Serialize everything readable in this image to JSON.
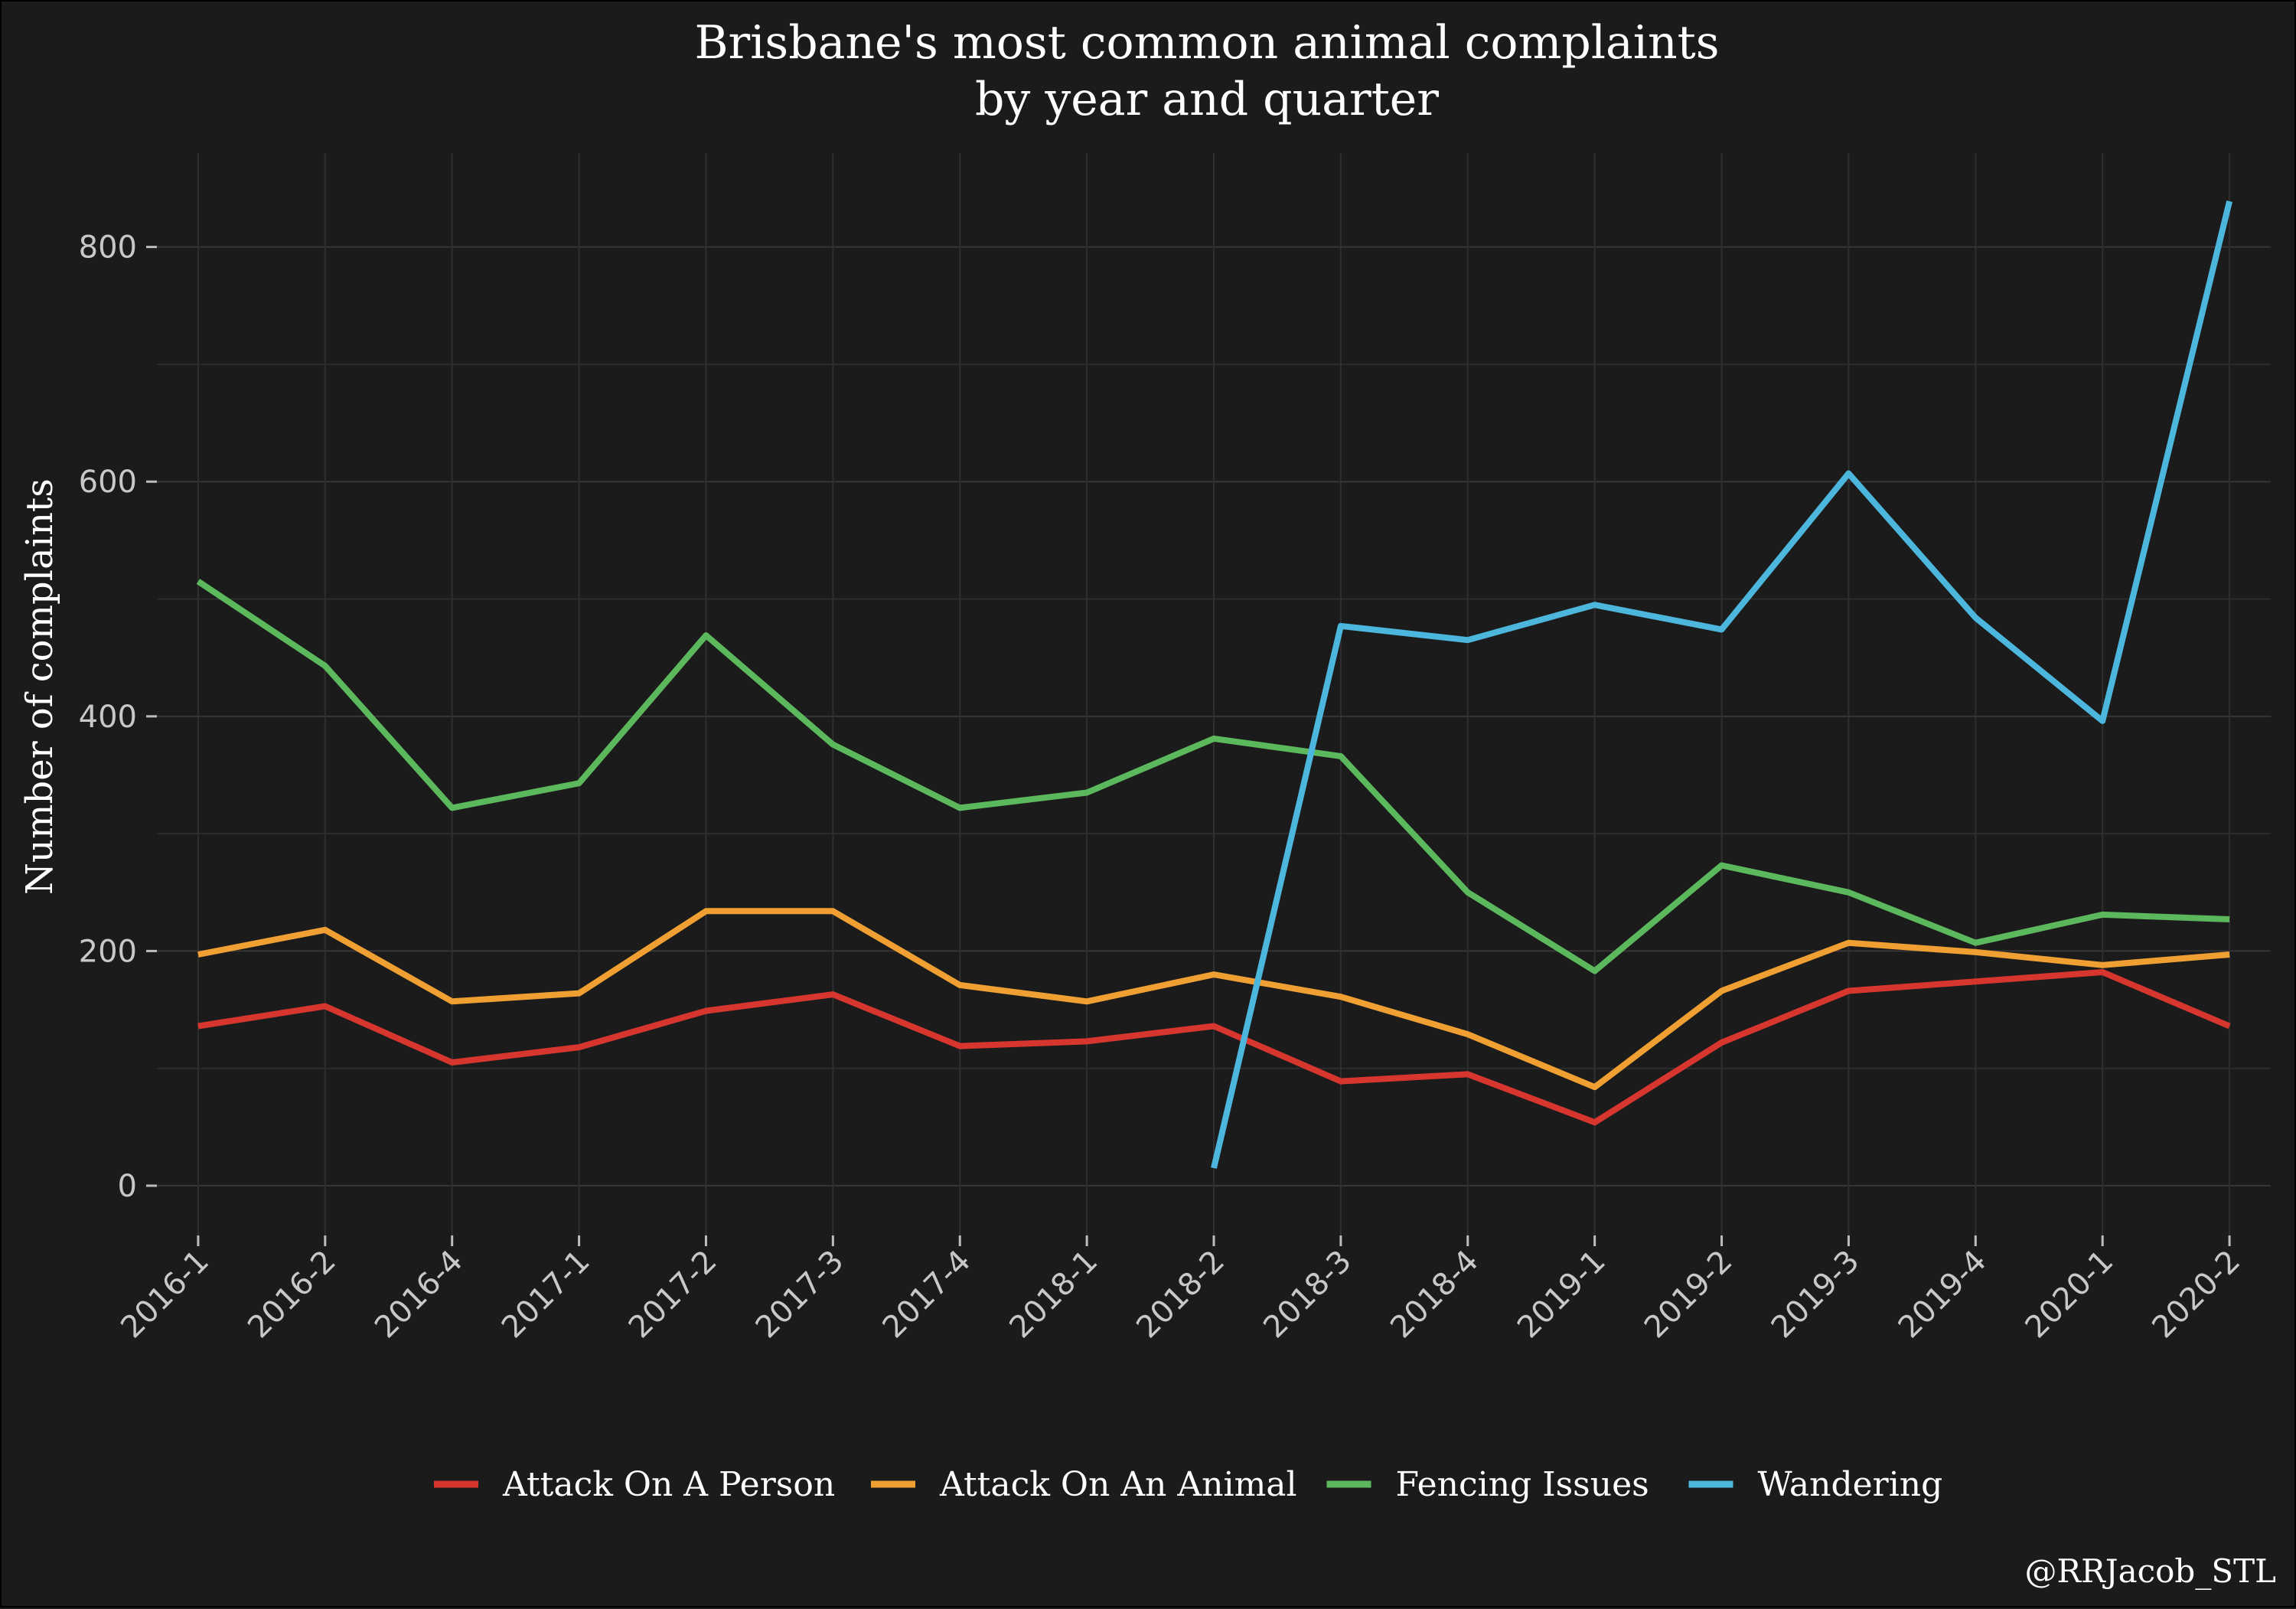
{
  "chart_data": {
    "type": "line",
    "title": "Brisbane's most common animal complaints",
    "subtitle": "by year and quarter",
    "xlabel": "",
    "ylabel": "Number of complaints",
    "ylim": [
      0,
      880
    ],
    "yticks": [
      0,
      200,
      400,
      600,
      800
    ],
    "grid": true,
    "legend_position": "bottom",
    "categories": [
      "2016-1",
      "2016-2",
      "2016-4",
      "2017-1",
      "2017-2",
      "2017-3",
      "2017-4",
      "2018-1",
      "2018-2",
      "2018-3",
      "2018-4",
      "2019-1",
      "2019-2",
      "2019-3",
      "2019-4",
      "2020-1",
      "2020-2"
    ],
    "series": [
      {
        "name": "Attack On A Person",
        "color": "#d7362f",
        "values": [
          136,
          153,
          105,
          118,
          149,
          163,
          119,
          123,
          136,
          89,
          95,
          54,
          122,
          166,
          174,
          182,
          136
        ]
      },
      {
        "name": "Attack On An Animal",
        "color": "#f0a033",
        "values": [
          197,
          218,
          157,
          164,
          234,
          234,
          171,
          157,
          180,
          161,
          129,
          84,
          166,
          207,
          199,
          188,
          197
        ]
      },
      {
        "name": "Fencing Issues",
        "color": "#5cb85c",
        "values": [
          515,
          443,
          322,
          343,
          469,
          376,
          322,
          335,
          381,
          366,
          250,
          183,
          273,
          250,
          207,
          231,
          227
        ]
      },
      {
        "name": "Wandering",
        "color": "#4cb6dd",
        "values": [
          null,
          null,
          null,
          null,
          null,
          null,
          null,
          null,
          15,
          477,
          465,
          495,
          474,
          607,
          484,
          396,
          839
        ]
      }
    ]
  },
  "credit": "@RRJacob_STL"
}
